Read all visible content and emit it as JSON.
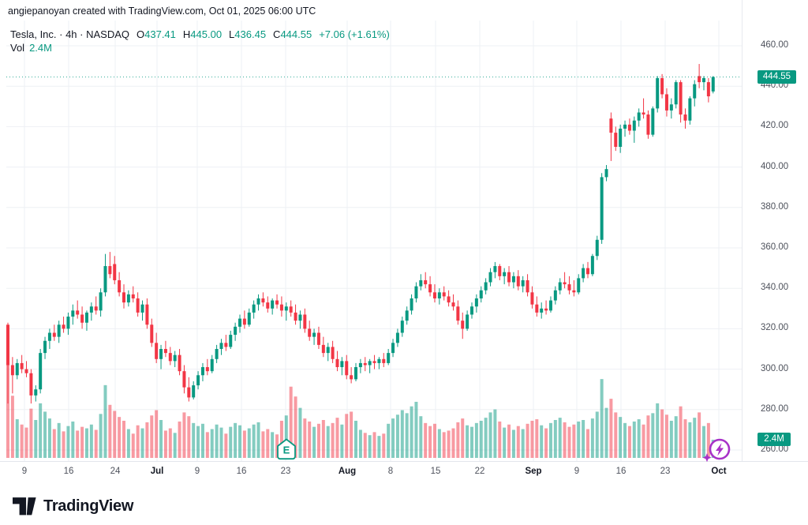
{
  "watermark": "angiepanoyan created with TradingView.com, Oct 01, 2025 06:00 UTC",
  "legend": {
    "symbol_line": "Tesla, Inc. · 4h · NASDAQ",
    "o_label": "O",
    "o_value": "437.41",
    "h_label": "H",
    "h_value": "445.00",
    "l_label": "L",
    "l_value": "436.45",
    "c_label": "C",
    "c_value": "444.55",
    "change": "+7.06 (+1.61%)",
    "vol_label": "Vol",
    "vol_value": "2.4M"
  },
  "price_axis": {
    "badge": "444.55",
    "vol_badge": "2.4M"
  },
  "footer": {
    "brand": "TradingView"
  },
  "colors": {
    "up": "#089981",
    "down": "#f23645",
    "up_volume": "rgba(8,153,129,0.5)",
    "down_volume": "rgba(242,54,69,0.5)",
    "grid": "#eef0f4",
    "text_dark": "#131722",
    "text_gray": "#4e525c",
    "marker_purple": "#a832c8",
    "badge_bg": "#089981"
  },
  "chart_data": {
    "type": "candlestick",
    "title": "Tesla, Inc. 4h NASDAQ",
    "legend_ohlc": {
      "open": 437.41,
      "high": 445.0,
      "low": 436.45,
      "close": 444.55,
      "change": "+7.06 (+1.61%)",
      "volume": "2.4M"
    },
    "y_tick_labels": [
      "460.00",
      "440.00",
      "420.00",
      "400.00",
      "380.00",
      "360.00",
      "340.00",
      "320.00",
      "300.00",
      "280.00",
      "260.00"
    ],
    "y_ticks": [
      460,
      440,
      420,
      400,
      380,
      360,
      340,
      320,
      300,
      280,
      260
    ],
    "ylim": [
      258,
      462
    ],
    "x_ticks": [
      {
        "label": "9",
        "x": 31,
        "major": false
      },
      {
        "label": "16",
        "x": 87,
        "major": false
      },
      {
        "label": "24",
        "x": 146,
        "major": false
      },
      {
        "label": "Jul",
        "x": 199,
        "major": true
      },
      {
        "label": "9",
        "x": 250,
        "major": false
      },
      {
        "label": "16",
        "x": 306,
        "major": false
      },
      {
        "label": "23",
        "x": 362,
        "major": false
      },
      {
        "label": "Aug",
        "x": 440,
        "major": true
      },
      {
        "label": "8",
        "x": 495,
        "major": false
      },
      {
        "label": "15",
        "x": 552,
        "major": false
      },
      {
        "label": "22",
        "x": 608,
        "major": false
      },
      {
        "label": "Sep",
        "x": 676,
        "major": true
      },
      {
        "label": "9",
        "x": 731,
        "major": false
      },
      {
        "label": "16",
        "x": 787,
        "major": false
      },
      {
        "label": "23",
        "x": 843,
        "major": false
      },
      {
        "label": "Oct",
        "x": 911,
        "major": true
      }
    ],
    "last_price": 444.55,
    "last_volume_m": 2.4,
    "volume_unit": "M shares",
    "markers": [
      {
        "label": "E",
        "type": "earnings",
        "index": 60
      }
    ],
    "candles_format": [
      "open",
      "high",
      "low",
      "close",
      "volume_m"
    ],
    "candles": [
      [
        322,
        323,
        283,
        302,
        15.5
      ],
      [
        302,
        306,
        288,
        297,
        8.2
      ],
      [
        297,
        305,
        295,
        303,
        5.1
      ],
      [
        303,
        307,
        298,
        300,
        4.4
      ],
      [
        300,
        304,
        296,
        298,
        4.0
      ],
      [
        298,
        300,
        283,
        287,
        6.5
      ],
      [
        287,
        292,
        284,
        290,
        5.0
      ],
      [
        290,
        310,
        288,
        308,
        7.2
      ],
      [
        308,
        316,
        305,
        314,
        6.1
      ],
      [
        314,
        320,
        310,
        318,
        5.2
      ],
      [
        318,
        322,
        314,
        316,
        3.8
      ],
      [
        316,
        324,
        313,
        322,
        4.6
      ],
      [
        322,
        326,
        318,
        320,
        3.5
      ],
      [
        320,
        328,
        317,
        326,
        4.2
      ],
      [
        326,
        332,
        322,
        329,
        4.8
      ],
      [
        329,
        334,
        325,
        327,
        3.6
      ],
      [
        327,
        331,
        320,
        323,
        4.1
      ],
      [
        323,
        329,
        319,
        328,
        3.9
      ],
      [
        328,
        333,
        324,
        331,
        4.4
      ],
      [
        331,
        336,
        327,
        329,
        3.7
      ],
      [
        329,
        340,
        326,
        338,
        5.8
      ],
      [
        338,
        357,
        336,
        351,
        9.6
      ],
      [
        351,
        358,
        345,
        347,
        7.0
      ],
      [
        352,
        356,
        342,
        344,
        6.2
      ],
      [
        344,
        348,
        336,
        338,
        5.4
      ],
      [
        338,
        342,
        330,
        333,
        4.9
      ],
      [
        333,
        339,
        331,
        337,
        3.8
      ],
      [
        337,
        341,
        333,
        335,
        3.2
      ],
      [
        335,
        338,
        326,
        328,
        4.3
      ],
      [
        328,
        334,
        324,
        332,
        3.9
      ],
      [
        332,
        335,
        320,
        322,
        4.7
      ],
      [
        322,
        325,
        311,
        313,
        5.6
      ],
      [
        313,
        318,
        303,
        305,
        6.3
      ],
      [
        305,
        312,
        300,
        310,
        5.0
      ],
      [
        310,
        314,
        306,
        308,
        3.6
      ],
      [
        308,
        311,
        302,
        304,
        3.9
      ],
      [
        304,
        309,
        301,
        307,
        3.3
      ],
      [
        307,
        310,
        297,
        299,
        4.8
      ],
      [
        299,
        302,
        288,
        291,
        6.0
      ],
      [
        291,
        296,
        284,
        286,
        5.5
      ],
      [
        286,
        294,
        285,
        292,
        4.6
      ],
      [
        292,
        299,
        290,
        297,
        4.2
      ],
      [
        297,
        303,
        294,
        301,
        4.5
      ],
      [
        301,
        305,
        297,
        299,
        3.4
      ],
      [
        299,
        307,
        298,
        305,
        3.8
      ],
      [
        305,
        312,
        303,
        310,
        4.4
      ],
      [
        310,
        315,
        307,
        313,
        4.0
      ],
      [
        313,
        317,
        309,
        311,
        3.2
      ],
      [
        311,
        319,
        310,
        317,
        4.1
      ],
      [
        317,
        323,
        314,
        321,
        4.6
      ],
      [
        321,
        327,
        318,
        325,
        4.3
      ],
      [
        325,
        329,
        320,
        322,
        3.6
      ],
      [
        322,
        330,
        321,
        328,
        3.9
      ],
      [
        328,
        334,
        325,
        332,
        4.4
      ],
      [
        332,
        337,
        329,
        335,
        4.7
      ],
      [
        335,
        338,
        331,
        333,
        3.5
      ],
      [
        333,
        336,
        328,
        330,
        3.8
      ],
      [
        330,
        335,
        327,
        334,
        3.4
      ],
      [
        334,
        337,
        330,
        332,
        3.1
      ],
      [
        332,
        336,
        326,
        329,
        4.9
      ],
      [
        329,
        333,
        324,
        331,
        5.6
      ],
      [
        331,
        334,
        326,
        328,
        9.4
      ],
      [
        328,
        332,
        322,
        324,
        8.1
      ],
      [
        324,
        329,
        320,
        327,
        6.6
      ],
      [
        327,
        330,
        318,
        320,
        5.2
      ],
      [
        320,
        324,
        314,
        316,
        4.8
      ],
      [
        316,
        320,
        312,
        318,
        4.1
      ],
      [
        318,
        321,
        310,
        312,
        4.5
      ],
      [
        312,
        316,
        306,
        308,
        5.0
      ],
      [
        308,
        313,
        304,
        311,
        4.2
      ],
      [
        311,
        314,
        303,
        305,
        4.6
      ],
      [
        305,
        309,
        299,
        301,
        5.3
      ],
      [
        301,
        306,
        297,
        304,
        4.4
      ],
      [
        304,
        307,
        295,
        297,
        5.8
      ],
      [
        297,
        301,
        293,
        295,
        6.1
      ],
      [
        295,
        303,
        294,
        301,
        4.9
      ],
      [
        301,
        305,
        298,
        303,
        3.7
      ],
      [
        303,
        306,
        299,
        302,
        3.3
      ],
      [
        302,
        305,
        298,
        304,
        3.0
      ],
      [
        304,
        307,
        300,
        303,
        3.4
      ],
      [
        303,
        306,
        300,
        305,
        2.9
      ],
      [
        305,
        308,
        301,
        303,
        3.2
      ],
      [
        303,
        310,
        302,
        308,
        4.5
      ],
      [
        308,
        315,
        306,
        313,
        5.2
      ],
      [
        313,
        320,
        311,
        318,
        5.7
      ],
      [
        318,
        326,
        316,
        324,
        6.3
      ],
      [
        324,
        331,
        322,
        329,
        5.9
      ],
      [
        329,
        337,
        327,
        335,
        6.8
      ],
      [
        335,
        343,
        333,
        341,
        7.4
      ],
      [
        341,
        347,
        339,
        344,
        5.5
      ],
      [
        344,
        348,
        340,
        342,
        4.6
      ],
      [
        342,
        346,
        336,
        338,
        4.2
      ],
      [
        338,
        342,
        333,
        335,
        4.5
      ],
      [
        335,
        340,
        332,
        338,
        3.8
      ],
      [
        338,
        341,
        334,
        336,
        3.4
      ],
      [
        336,
        339,
        331,
        333,
        3.6
      ],
      [
        333,
        337,
        329,
        331,
        3.9
      ],
      [
        331,
        334,
        322,
        324,
        4.7
      ],
      [
        324,
        328,
        315,
        320,
        5.2
      ],
      [
        320,
        329,
        319,
        327,
        4.3
      ],
      [
        327,
        333,
        325,
        331,
        4.1
      ],
      [
        331,
        337,
        328,
        335,
        4.6
      ],
      [
        335,
        341,
        333,
        339,
        4.9
      ],
      [
        339,
        345,
        337,
        343,
        5.3
      ],
      [
        343,
        350,
        341,
        348,
        6.0
      ],
      [
        348,
        353,
        345,
        351,
        6.4
      ],
      [
        351,
        352,
        344,
        346,
        4.8
      ],
      [
        346,
        350,
        342,
        348,
        4.0
      ],
      [
        348,
        351,
        341,
        343,
        4.4
      ],
      [
        343,
        348,
        340,
        346,
        3.7
      ],
      [
        346,
        349,
        339,
        341,
        4.2
      ],
      [
        341,
        346,
        338,
        344,
        3.8
      ],
      [
        344,
        347,
        336,
        338,
        4.5
      ],
      [
        338,
        341,
        330,
        332,
        4.9
      ],
      [
        332,
        336,
        326,
        328,
        5.1
      ],
      [
        328,
        333,
        325,
        330,
        4.3
      ],
      [
        330,
        334,
        327,
        329,
        3.9
      ],
      [
        329,
        336,
        328,
        334,
        4.6
      ],
      [
        334,
        341,
        332,
        339,
        5.0
      ],
      [
        339,
        345,
        337,
        343,
        5.3
      ],
      [
        343,
        348,
        340,
        342,
        4.7
      ],
      [
        342,
        346,
        337,
        339,
        4.1
      ],
      [
        339,
        344,
        336,
        338,
        4.4
      ],
      [
        338,
        347,
        337,
        345,
        4.8
      ],
      [
        345,
        352,
        343,
        350,
        5.0
      ],
      [
        350,
        353,
        345,
        347,
        3.8
      ],
      [
        347,
        357,
        346,
        356,
        5.2
      ],
      [
        356,
        366,
        354,
        364,
        6.1
      ],
      [
        364,
        397,
        362,
        395,
        10.4
      ],
      [
        395,
        401,
        393,
        399,
        6.6
      ],
      [
        424,
        427,
        403,
        417,
        7.8
      ],
      [
        417,
        420,
        408,
        410,
        6.0
      ],
      [
        410,
        421,
        407,
        419,
        5.4
      ],
      [
        419,
        423,
        415,
        421,
        4.6
      ],
      [
        421,
        424,
        416,
        418,
        4.2
      ],
      [
        418,
        425,
        412,
        423,
        4.8
      ],
      [
        423,
        429,
        420,
        427,
        5.1
      ],
      [
        427,
        434,
        424,
        426,
        4.4
      ],
      [
        426,
        428,
        414,
        416,
        5.6
      ],
      [
        416,
        430,
        415,
        429,
        5.9
      ],
      [
        429,
        445,
        427,
        444,
        7.2
      ],
      [
        444,
        446,
        434,
        436,
        6.4
      ],
      [
        436,
        439,
        425,
        428,
        5.7
      ],
      [
        428,
        434,
        424,
        431,
        4.9
      ],
      [
        431,
        443,
        429,
        442,
        5.5
      ],
      [
        442,
        443,
        422,
        426,
        6.8
      ],
      [
        426,
        429,
        419,
        423,
        5.1
      ],
      [
        423,
        435,
        421,
        434,
        4.7
      ],
      [
        434,
        443,
        430,
        441,
        5.3
      ],
      [
        445,
        451,
        439,
        442,
        6.0
      ],
      [
        442,
        445,
        438,
        444,
        4.2
      ],
      [
        442,
        444,
        432,
        435,
        4.6
      ],
      [
        437.41,
        445,
        436.45,
        444.55,
        2.4
      ]
    ]
  }
}
